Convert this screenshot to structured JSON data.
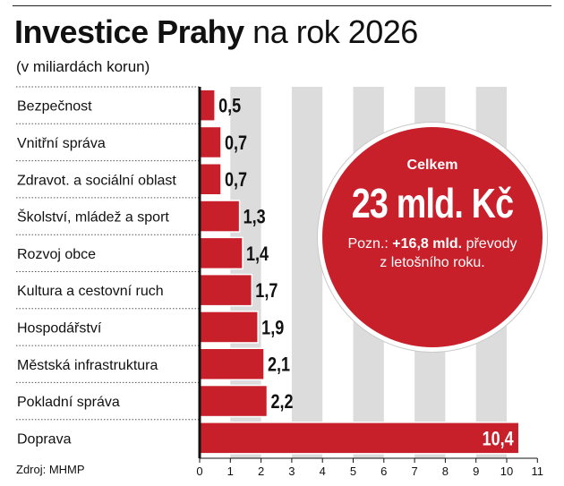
{
  "header": {
    "title_bold": "Investice Prahy",
    "title_light": "na rok 2026",
    "subtitle": "(v miliardách korun)"
  },
  "callout": {
    "label": "Celkem",
    "value": "23 mld. Kč",
    "note_prefix": "Pozn.:",
    "note_highlight": "+16,8 mld.",
    "note_rest": "převody z letošního roku."
  },
  "source": "Zdroj: MHMP",
  "colors": {
    "bar": "#c8202a",
    "band": "#dcdcdc",
    "axis": "#111111",
    "bar_outline": "#ffffff"
  },
  "chart_data": {
    "type": "bar",
    "orientation": "horizontal",
    "categories": [
      "Bezpečnost",
      "Vnitřní správa",
      "Zdravot. a sociální oblast",
      "Školství, mládež a sport",
      "Rozvoj obce",
      "Kultura a cestovní ruch",
      "Hospodářství",
      "Městská infrastruktura",
      "Pokladní správa",
      "Doprava"
    ],
    "values": [
      0.5,
      0.7,
      0.7,
      1.3,
      1.4,
      1.7,
      1.9,
      2.1,
      2.2,
      10.4
    ],
    "value_labels": [
      "0,5",
      "0,7",
      "0,7",
      "1,3",
      "1,4",
      "1,7",
      "1,9",
      "2,1",
      "2,2",
      "10,4"
    ],
    "xlim": [
      0,
      11
    ],
    "xticks": [
      0,
      1,
      2,
      3,
      4,
      5,
      6,
      7,
      8,
      9,
      10,
      11
    ],
    "xtick_labels": [
      "0",
      "1",
      "2",
      "3",
      "4",
      "5",
      "6",
      "7",
      "8",
      "9",
      "10",
      "11"
    ],
    "grid": "alternating vertical bands",
    "legend": "none"
  }
}
